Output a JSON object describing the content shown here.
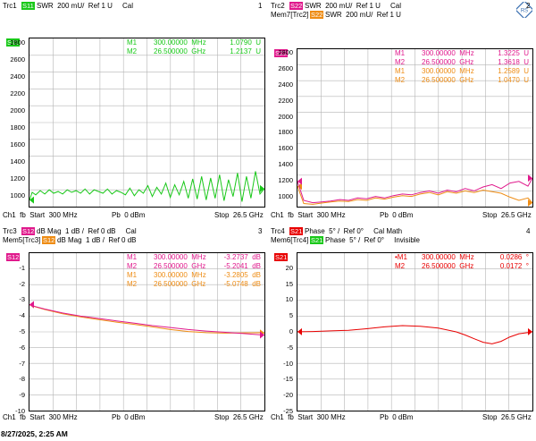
{
  "colors": {
    "green": "#19c819",
    "magenta": "#e0198c",
    "orange": "#ee8c14",
    "red": "#e80000",
    "grid": "#b4b4b4"
  },
  "logo": {
    "name": "rohde-schwarz-logo"
  },
  "timestamp": "8/27/2025, 2:25 AM",
  "panels": [
    {
      "id": "trc1",
      "header_lines": [
        {
          "trc": "Trc1",
          "badge": "S11",
          "badge_color": "#19c819",
          "text": "SWR  200 mU/  Ref 1 U     Cal"
        }
      ],
      "number": "1",
      "tag": "S11",
      "tag_color": "#19c819",
      "yticks": [
        "2800",
        "2600",
        "2400",
        "2200",
        "2000",
        "1800",
        "1600",
        "1400",
        "1200",
        "1000"
      ],
      "markers": [
        {
          "m": "M1",
          "freq": "300.00000  MHz",
          "val": "1.0790  U",
          "color": "#19c819"
        },
        {
          "m": "M2",
          "freq": "26.500000  GHz",
          "val": "1.2137  U",
          "color": "#19c819"
        }
      ],
      "footer": {
        "left": "Ch1  fb  Start  300 MHz",
        "mid": "Pb  0 dBm",
        "right": "Stop  26.5 GHz"
      }
    },
    {
      "id": "trc2",
      "header_lines": [
        {
          "trc": "Trc2",
          "badge": "S22",
          "badge_color": "#e0198c",
          "text": "SWR  200 mU/  Ref 1 U     Cal"
        },
        {
          "trc": "Mem7[Trc2]",
          "badge": "S22",
          "badge_color": "#ee8c14",
          "text": "SWR  200 mU/  Ref 1 U"
        }
      ],
      "number": "2",
      "tag": "S22",
      "tag_color": "#e0198c",
      "yticks": [
        "2800",
        "2600",
        "2400",
        "2200",
        "2000",
        "1800",
        "1600",
        "1400",
        "1200",
        "1000"
      ],
      "markers": [
        {
          "m": "M1",
          "freq": "300.00000  MHz",
          "val": "1.3225  U",
          "color": "#e0198c"
        },
        {
          "m": "M2",
          "freq": "26.500000  GHz",
          "val": "1.3618  U",
          "color": "#e0198c"
        },
        {
          "m": "M1",
          "freq": "300.00000  MHz",
          "val": "1.2589  U",
          "color": "#ee8c14"
        },
        {
          "m": "M2",
          "freq": "26.500000  GHz",
          "val": "1.0470  U",
          "color": "#ee8c14"
        }
      ],
      "footer": {
        "left": "Ch1  fb  Start  300 MHz",
        "mid": "Pb  0 dBm",
        "right": "Stop  26.5 GHz"
      }
    },
    {
      "id": "trc3",
      "header_lines": [
        {
          "trc": "Trc3",
          "badge": "S12",
          "badge_color": "#e0198c",
          "text": "dB Mag  1 dB /  Ref 0 dB     Cal"
        },
        {
          "trc": "Mem5[Trc3]",
          "badge": "S12",
          "badge_color": "#ee8c14",
          "text": "dB Mag  1 dB /  Ref 0 dB"
        }
      ],
      "number": "3",
      "tag": "S12",
      "tag_color": "#e0198c",
      "yticks": [
        "-1",
        "-2",
        "-3",
        "-4",
        "-5",
        "-6",
        "-7",
        "-8",
        "-9",
        "-10"
      ],
      "markers": [
        {
          "m": "M1",
          "freq": "300.00000  MHz",
          "val": "-3.2737  dB",
          "color": "#e0198c"
        },
        {
          "m": "M2",
          "freq": "26.500000  GHz",
          "val": "-5.2041  dB",
          "color": "#e0198c"
        },
        {
          "m": "M1",
          "freq": "300.00000  MHz",
          "val": "-3.2805  dB",
          "color": "#ee8c14"
        },
        {
          "m": "M2",
          "freq": "26.500000  GHz",
          "val": "-5.0748  dB",
          "color": "#ee8c14"
        }
      ],
      "footer": {
        "left": "Ch1  fb  Start  300 MHz",
        "mid": "Pb  0 dBm",
        "right": "Stop  26.5 GHz"
      }
    },
    {
      "id": "trc4",
      "header_lines": [
        {
          "trc": "Trc4",
          "badge": "S21",
          "badge_color": "#e80000",
          "text": "Phase  5° /  Ref 0°     Cal Math"
        },
        {
          "trc": "Mem6[Trc4]",
          "badge": "S21",
          "badge_color": "#19c819",
          "text": "Phase  5° /  Ref 0°     Invisible"
        }
      ],
      "number": "4",
      "tag": "S21",
      "tag_color": "#e80000",
      "yticks": [
        "20",
        "15",
        "10",
        "5",
        "0",
        "-5",
        "-10",
        "-15",
        "-20",
        "-25"
      ],
      "markers": [
        {
          "m": "•M1",
          "freq": "300.00000  MHz",
          "val": "0.0286  °",
          "color": "#e80000"
        },
        {
          "m": "M2",
          "freq": "26.500000  GHz",
          "val": "0.0172  °",
          "color": "#e80000"
        }
      ],
      "footer": {
        "left": "Ch1  fb  Start  300 MHz",
        "mid": "Pb  0 dBm",
        "right": "Stop  26.5 GHz"
      }
    }
  ],
  "chart_data": [
    {
      "type": "line",
      "title": "Trc1 S11 SWR",
      "xlabel": "",
      "ylabel": "",
      "xlim": [
        0.3,
        26.5
      ],
      "ylim": [
        1000,
        3000
      ],
      "grid": true,
      "series": [
        {
          "name": "S11",
          "color": "#19c819",
          "x": [
            0.3,
            0.6,
            1.0,
            1.5,
            2,
            2.5,
            3,
            3.5,
            4,
            4.5,
            5,
            5.5,
            6,
            6.5,
            7,
            7.5,
            8,
            8.5,
            9,
            9.5,
            10,
            10.5,
            11,
            11.5,
            12,
            12.5,
            13,
            13.5,
            14,
            14.5,
            15,
            15.5,
            16,
            16.5,
            17,
            17.5,
            18,
            18.5,
            19,
            19.5,
            20,
            20.5,
            21,
            21.5,
            22,
            22.5,
            23,
            23.5,
            24,
            24.5,
            25,
            25.5,
            26,
            26.5
          ],
          "y": [
            1079,
            1170,
            1140,
            1190,
            1150,
            1200,
            1160,
            1180,
            1150,
            1200,
            1170,
            1190,
            1160,
            1210,
            1150,
            1200,
            1180,
            1160,
            1210,
            1150,
            1190,
            1170,
            1140,
            1220,
            1130,
            1200,
            1160,
            1250,
            1120,
            1230,
            1150,
            1280,
            1110,
            1260,
            1140,
            1300,
            1100,
            1330,
            1090,
            1360,
            1080,
            1340,
            1100,
            1380,
            1070,
            1320,
            1120,
            1400,
            1060,
            1360,
            1100,
            1420,
            1150,
            1214
          ]
        }
      ]
    },
    {
      "type": "line",
      "title": "Trc2 S22 SWR",
      "xlabel": "",
      "ylabel": "",
      "xlim": [
        0.3,
        26.5
      ],
      "ylim": [
        1000,
        3000
      ],
      "grid": true,
      "series": [
        {
          "name": "S22",
          "color": "#e0198c",
          "x": [
            0.3,
            1,
            2,
            3,
            4,
            5,
            6,
            7,
            8,
            9,
            10,
            11,
            12,
            13,
            14,
            15,
            16,
            17,
            18,
            19,
            20,
            21,
            22,
            23,
            24,
            25,
            26,
            26.5
          ],
          "y": [
            1322,
            1080,
            1050,
            1060,
            1070,
            1090,
            1080,
            1110,
            1100,
            1130,
            1110,
            1140,
            1160,
            1150,
            1180,
            1200,
            1170,
            1210,
            1190,
            1230,
            1200,
            1250,
            1280,
            1230,
            1300,
            1320,
            1260,
            1362
          ]
        },
        {
          "name": "Mem7[Trc2]",
          "color": "#ee8c14",
          "x": [
            0.3,
            1,
            2,
            3,
            4,
            5,
            6,
            7,
            8,
            9,
            10,
            11,
            12,
            13,
            14,
            15,
            16,
            17,
            18,
            19,
            20,
            21,
            22,
            23,
            24,
            25,
            26,
            26.5
          ],
          "y": [
            1259,
            1040,
            1030,
            1045,
            1060,
            1070,
            1065,
            1090,
            1080,
            1110,
            1095,
            1120,
            1140,
            1130,
            1160,
            1180,
            1150,
            1190,
            1170,
            1200,
            1180,
            1210,
            1190,
            1170,
            1120,
            1080,
            1110,
            1047
          ]
        }
      ]
    },
    {
      "type": "line",
      "title": "Trc3 S12 dB Mag",
      "xlabel": "",
      "ylabel": "",
      "xlim": [
        0.3,
        26.5
      ],
      "ylim": [
        -10,
        0
      ],
      "grid": true,
      "series": [
        {
          "name": "S12",
          "color": "#e0198c",
          "x": [
            0.3,
            1,
            2,
            4,
            6,
            8,
            10,
            12,
            14,
            16,
            18,
            20,
            22,
            24,
            26,
            26.5
          ],
          "y": [
            -3.27,
            -3.4,
            -3.55,
            -3.8,
            -4.0,
            -4.15,
            -4.3,
            -4.45,
            -4.6,
            -4.72,
            -4.85,
            -4.95,
            -5.02,
            -5.1,
            -5.18,
            -5.2
          ]
        },
        {
          "name": "Mem5[Trc3]",
          "color": "#ee8c14",
          "x": [
            0.3,
            1,
            2,
            4,
            6,
            8,
            10,
            12,
            14,
            16,
            18,
            20,
            22,
            24,
            26,
            26.5
          ],
          "y": [
            -3.28,
            -3.42,
            -3.58,
            -3.85,
            -4.05,
            -4.22,
            -4.38,
            -4.52,
            -4.68,
            -4.85,
            -4.98,
            -5.05,
            -5.08,
            -5.06,
            -5.05,
            -5.07
          ]
        }
      ]
    },
    {
      "type": "line",
      "title": "Trc4 S21 Phase",
      "xlabel": "",
      "ylabel": "",
      "xlim": [
        0.3,
        26.5
      ],
      "ylim": [
        -25,
        25
      ],
      "grid": true,
      "series": [
        {
          "name": "S21",
          "color": "#e80000",
          "x": [
            0.3,
            2,
            4,
            6,
            8,
            10,
            12,
            14,
            16,
            18,
            19,
            20,
            21,
            22,
            23,
            24,
            25,
            26,
            26.5
          ],
          "y": [
            0.03,
            0.1,
            0.3,
            0.5,
            1.0,
            1.6,
            2.0,
            1.8,
            1.2,
            0.0,
            -1.0,
            -2.2,
            -3.3,
            -3.8,
            -3.0,
            -1.6,
            -0.6,
            -0.2,
            0.02
          ]
        }
      ]
    }
  ]
}
